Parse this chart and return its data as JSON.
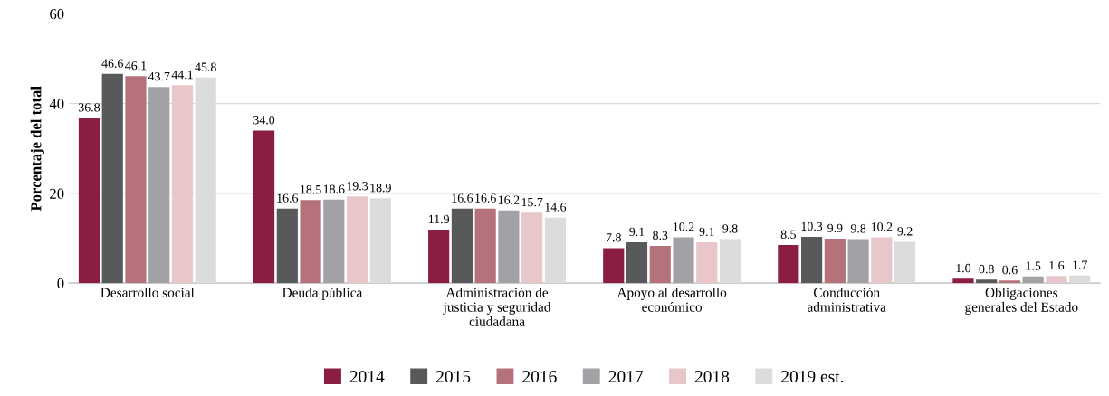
{
  "chart_data": {
    "type": "bar",
    "ylabel": "Porcentaje del total",
    "categories": [
      "Desarrollo social",
      "Deuda pública",
      "Administración de\njusticia y seguridad\nciudadana",
      "Apoyo al desarrollo\neconómico",
      "Conducción\nadministrativa",
      "Obligaciones\ngenerales del Estado"
    ],
    "series": [
      {
        "name": "2014",
        "color": "#8b1c42",
        "values": [
          36.8,
          34.0,
          11.9,
          7.8,
          8.5,
          1.0
        ]
      },
      {
        "name": "2015",
        "color": "#58595b",
        "values": [
          46.6,
          16.6,
          16.6,
          9.1,
          10.3,
          0.8
        ]
      },
      {
        "name": "2016",
        "color": "#b5727a",
        "values": [
          46.1,
          18.5,
          16.6,
          8.3,
          9.9,
          0.6
        ]
      },
      {
        "name": "2017",
        "color": "#a2a1a5",
        "values": [
          43.7,
          18.6,
          16.2,
          10.2,
          9.8,
          1.5
        ]
      },
      {
        "name": "2018",
        "color": "#e8c6c9",
        "values": [
          44.1,
          19.3,
          15.7,
          9.1,
          10.2,
          1.6
        ]
      },
      {
        "name": "2019 est.",
        "color": "#dcdcdc",
        "values": [
          45.8,
          18.9,
          14.6,
          9.8,
          9.2,
          1.7
        ]
      }
    ],
    "ylim": [
      0,
      60
    ],
    "yticks": [
      0,
      20,
      40,
      60
    ],
    "grid": "y",
    "legend": "bottom",
    "value_labels": [
      [
        "36.8",
        "34.0",
        "11.9",
        "7.8",
        "8.5",
        "1.0"
      ],
      [
        "46.6",
        "16.6",
        "16.6",
        "9.1",
        "10.3",
        "0.8"
      ],
      [
        "46.1",
        "18.5",
        "16.6",
        "8.3",
        "9.9",
        "0.6"
      ],
      [
        "43.7",
        "18.6",
        "16.2",
        "10.2",
        "9.8",
        "1.5"
      ],
      [
        "44.1",
        "19.3",
        "15.7",
        "9.1",
        "10.2",
        "1.6"
      ],
      [
        "45.8",
        "18.9",
        "14.6",
        "9.8",
        "9.2",
        "1.7"
      ]
    ]
  }
}
